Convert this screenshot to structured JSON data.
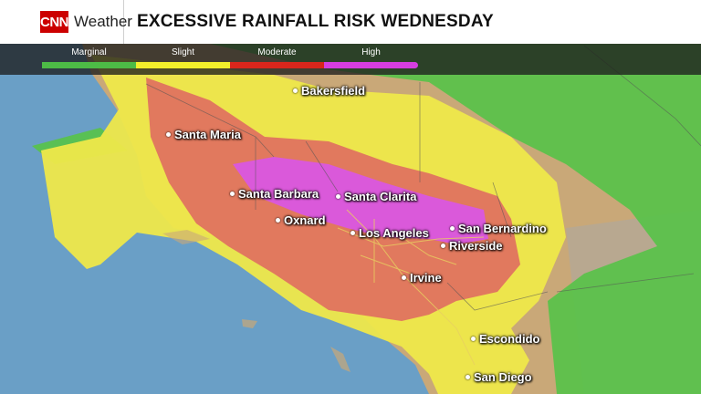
{
  "header": {
    "logo_text": "CNN",
    "brand": "Weather",
    "title": "EXCESSIVE RAINFALL RISK WEDNESDAY"
  },
  "legend": [
    {
      "label": "Marginal",
      "color": "#4dbb46"
    },
    {
      "label": "Slight",
      "color": "#f2ef2b"
    },
    {
      "label": "Moderate",
      "color": "#d9261c"
    },
    {
      "label": "High",
      "color": "#d63de0"
    }
  ],
  "cities": [
    {
      "name": "Bakersfield"
    },
    {
      "name": "Santa Maria"
    },
    {
      "name": "Santa Barbara"
    },
    {
      "name": "Santa Clarita"
    },
    {
      "name": "Oxnard"
    },
    {
      "name": "Los Angeles"
    },
    {
      "name": "San Bernardino"
    },
    {
      "name": "Riverside"
    },
    {
      "name": "Irvine"
    },
    {
      "name": "Escondido"
    },
    {
      "name": "San Diego"
    }
  ]
}
